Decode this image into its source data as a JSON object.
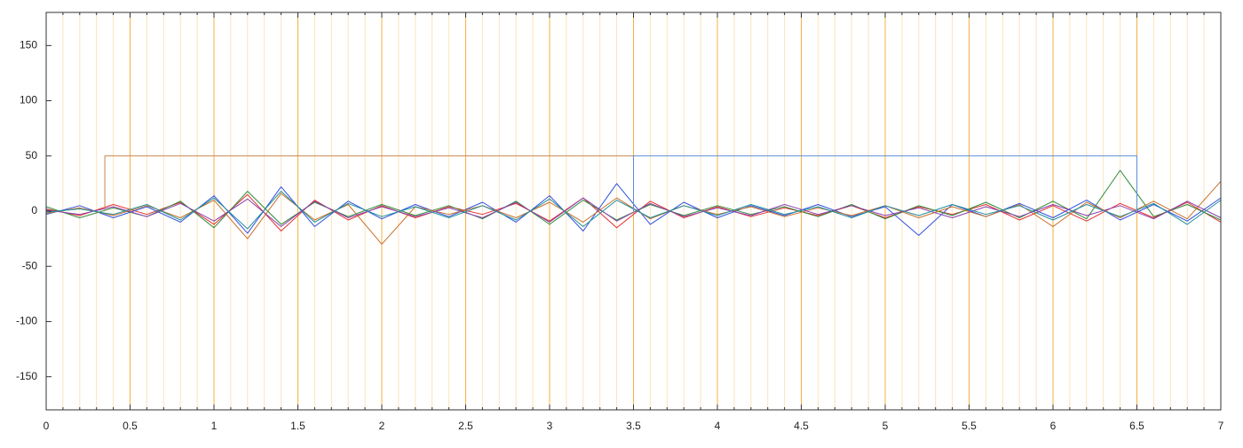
{
  "chart_data": {
    "type": "line",
    "xlim": [
      0,
      7
    ],
    "ylim": [
      -180,
      180
    ],
    "xticks": [
      0,
      0.5,
      1,
      1.5,
      2,
      2.5,
      3,
      3.5,
      4,
      4.5,
      5,
      5.5,
      6,
      6.5,
      7
    ],
    "xminorticks": [
      0.1,
      0.2,
      0.3,
      0.4,
      0.6,
      0.7,
      0.8,
      0.9,
      1.1,
      1.2,
      1.3,
      1.4,
      1.6,
      1.7,
      1.8,
      1.9,
      2.1,
      2.2,
      2.3,
      2.4,
      2.6,
      2.7,
      2.8,
      2.9,
      3.1,
      3.2,
      3.3,
      3.4,
      3.6,
      3.7,
      3.8,
      3.9,
      4.1,
      4.2,
      4.3,
      4.4,
      4.6,
      4.7,
      4.8,
      4.9,
      5.1,
      5.2,
      5.3,
      5.4,
      5.6,
      5.7,
      5.8,
      5.9,
      6.1,
      6.2,
      6.3,
      6.4,
      6.6,
      6.7,
      6.8,
      6.9
    ],
    "yticks": [
      -150,
      -100,
      -50,
      0,
      50,
      100,
      150
    ],
    "grid": true,
    "grid_color": "#f5b041",
    "minor_grid_color": "#fbe3bd",
    "x": [
      0,
      0.2,
      0.4,
      0.6,
      0.8,
      1,
      1.2,
      1.4,
      1.6,
      1.8,
      2,
      2.2,
      2.4,
      2.6,
      2.8,
      3,
      3.2,
      3.4,
      3.6,
      3.8,
      4,
      4.2,
      4.4,
      4.6,
      4.8,
      5,
      5.2,
      5.4,
      5.6,
      5.8,
      6,
      6.2,
      6.4,
      6.6,
      6.8,
      7
    ],
    "series": [
      {
        "color": "#e03030",
        "values": [
          2,
          -4,
          6,
          -3,
          8,
          -12,
          15,
          -18,
          10,
          -8,
          5,
          -6,
          4,
          -3,
          7,
          -9,
          12,
          -15,
          9,
          -6,
          4,
          -5,
          3,
          -4,
          5,
          -6,
          4,
          -3,
          6,
          -8,
          5,
          -9,
          7,
          -6,
          8,
          -10
        ]
      },
      {
        "color": "#3050e0",
        "values": [
          -3,
          5,
          -6,
          4,
          -10,
          14,
          -20,
          22,
          -14,
          9,
          -7,
          6,
          -5,
          8,
          -10,
          14,
          -18,
          25,
          -12,
          8,
          -6,
          5,
          -4,
          6,
          -5,
          4,
          -22,
          6,
          -5,
          7,
          -6,
          10,
          -8,
          6,
          -9,
          12
        ]
      },
      {
        "color": "#2e8b3a",
        "values": [
          4,
          -6,
          3,
          -5,
          9,
          -15,
          18,
          -12,
          8,
          -5,
          6,
          -4,
          5,
          -7,
          9,
          -12,
          10,
          -8,
          6,
          -4,
          5,
          -3,
          4,
          -5,
          6,
          -7,
          5,
          -4,
          8,
          -6,
          9,
          -7,
          37,
          -5,
          6,
          -8
        ]
      },
      {
        "color": "#c8702a",
        "values": [
          -2,
          3,
          -4,
          5,
          -6,
          10,
          -25,
          16,
          -8,
          6,
          -30,
          4,
          -3,
          5,
          -6,
          8,
          -10,
          12,
          -7,
          5,
          -3,
          4,
          -5,
          3,
          -4,
          5,
          -6,
          4,
          -5,
          6,
          -14,
          8,
          -6,
          9,
          -7,
          27
        ]
      },
      {
        "color": "#8a3fb0",
        "values": [
          1,
          -3,
          4,
          -5,
          7,
          -9,
          11,
          -14,
          9,
          -6,
          4,
          -5,
          3,
          -6,
          8,
          -10,
          12,
          -9,
          7,
          -5,
          3,
          -4,
          6,
          -3,
          5,
          -4,
          3,
          -6,
          4,
          -5,
          6,
          -4,
          5,
          -7,
          9,
          -6
        ]
      },
      {
        "color": "#1f8f9a",
        "values": [
          -1,
          2,
          -3,
          6,
          -8,
          12,
          -16,
          18,
          -10,
          7,
          -5,
          4,
          -6,
          5,
          -8,
          11,
          -14,
          10,
          -6,
          5,
          -4,
          6,
          -3,
          4,
          -6,
          5,
          -4,
          6,
          -3,
          5,
          -8,
          6,
          -5,
          7,
          -12,
          10
        ]
      },
      {
        "color": "#c8864a",
        "x": [
          0.35,
          0.35,
          3.5,
          3.5
        ],
        "values": [
          0,
          50,
          50,
          -3
        ]
      },
      {
        "color": "#5b8fd6",
        "x": [
          3.5,
          3.5,
          6.5,
          6.5
        ],
        "values": [
          0,
          50,
          50,
          0
        ]
      }
    ]
  }
}
